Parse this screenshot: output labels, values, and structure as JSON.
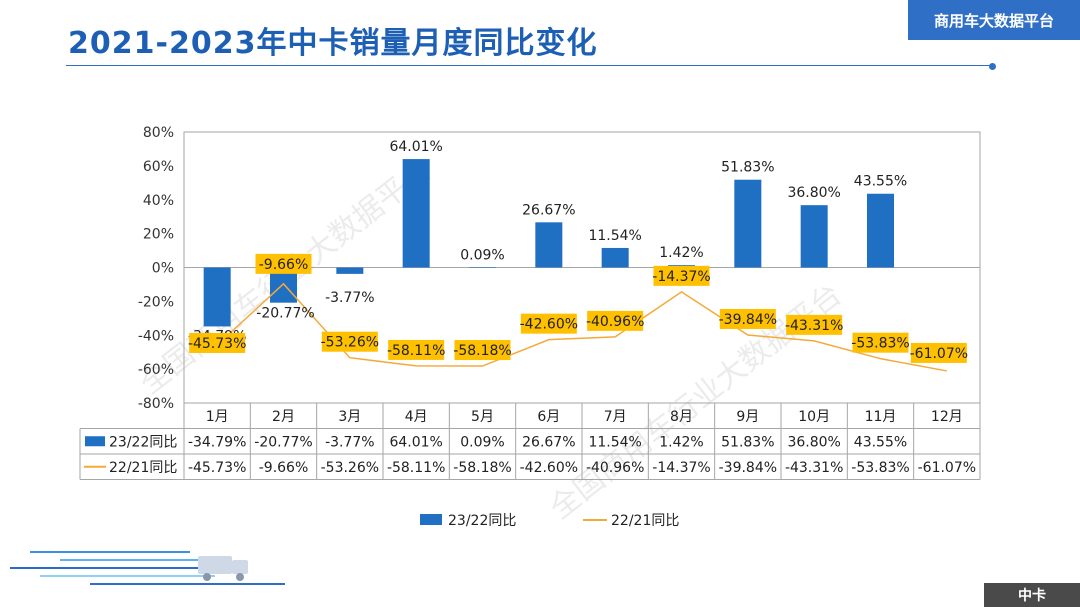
{
  "title": "2021-2023年中卡销量月度同比变化",
  "brand": "商用车大数据平台",
  "footer_badge": "中卡",
  "watermark": "全国商用车行业大数据平台",
  "colors": {
    "bar": "#1f6fc2",
    "line": "#f5a93a",
    "label_box": "#ffc000",
    "accent": "#2f6fc6"
  },
  "chart_data": {
    "type": "bar",
    "categories": [
      "1月",
      "2月",
      "3月",
      "4月",
      "5月",
      "6月",
      "7月",
      "8月",
      "9月",
      "10月",
      "11月",
      "12月"
    ],
    "ylim": [
      -80,
      80
    ],
    "yticks": [
      80,
      60,
      40,
      20,
      0,
      -20,
      -40,
      -60,
      -80
    ],
    "ytick_labels": [
      "80%",
      "60%",
      "40%",
      "20%",
      "0%",
      "-20%",
      "-40%",
      "-60%",
      "-80%"
    ],
    "series": [
      {
        "name": "23/22同比",
        "type": "bar",
        "values": [
          -34.79,
          -20.77,
          -3.77,
          64.01,
          0.09,
          26.67,
          11.54,
          1.42,
          51.83,
          36.8,
          43.55,
          null
        ],
        "labels": [
          "-34.79%",
          "-20.77%",
          "-3.77%",
          "64.01%",
          "0.09%",
          "26.67%",
          "11.54%",
          "1.42%",
          "51.83%",
          "36.80%",
          "43.55%",
          ""
        ]
      },
      {
        "name": "22/21同比",
        "type": "line",
        "values": [
          -45.73,
          -9.66,
          -53.26,
          -58.11,
          -58.18,
          -42.6,
          -40.96,
          -14.37,
          -39.84,
          -43.31,
          -53.83,
          -61.07
        ],
        "labels": [
          "-45.73%",
          "-9.66%",
          "-53.26%",
          "-58.11%",
          "-58.18%",
          "-42.60%",
          "-40.96%",
          "-14.37%",
          "-39.84%",
          "-43.31%",
          "-53.83%",
          "-61.07%"
        ]
      }
    ],
    "legend_position": "bottom",
    "grid": false
  }
}
